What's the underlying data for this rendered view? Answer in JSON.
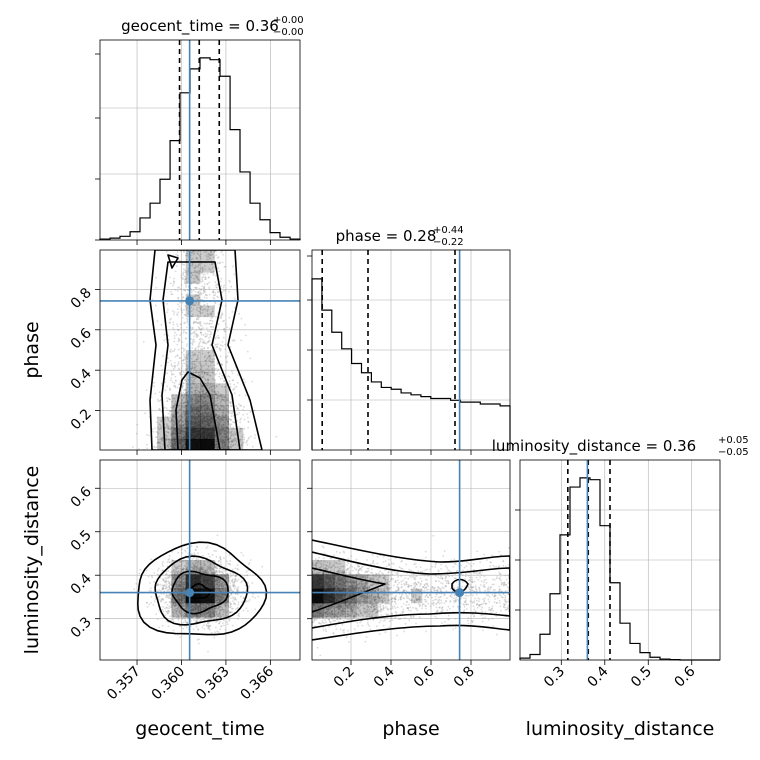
{
  "chart_data": {
    "type": "corner",
    "parameters": [
      "geocent_time",
      "phase",
      "luminosity_distance"
    ],
    "axis_labels": {
      "geocent_time": "geocent_time",
      "phase": "phase",
      "luminosity_distance": "luminosity_distance"
    },
    "ranges": {
      "geocent_time": [
        0.3545,
        0.368
      ],
      "phase": [
        0.005,
        0.995
      ],
      "luminosity_distance": [
        0.205,
        0.665
      ]
    },
    "ticks": {
      "geocent_time": [
        0.357,
        0.36,
        0.363,
        0.366
      ],
      "phase": [
        0.2,
        0.4,
        0.6,
        0.8
      ],
      "luminosity_distance": [
        0.3,
        0.4,
        0.5,
        0.6
      ]
    },
    "tick_labels": {
      "geocent_time": [
        "0.357",
        "0.360",
        "0.363",
        "0.366"
      ],
      "phase": [
        "0.2",
        "0.4",
        "0.6",
        "0.8"
      ],
      "luminosity_distance": [
        "0.3",
        "0.4",
        "0.5",
        "0.6"
      ]
    },
    "titles": {
      "geocent_time": {
        "name": "geocent_time",
        "median": "0.36",
        "upper": "+0.00",
        "lower": "−0.00"
      },
      "phase": {
        "name": "phase",
        "median": "0.28",
        "upper": "+0.44",
        "lower": "−0.22"
      },
      "luminosity_distance": {
        "name": "luminosity_distance",
        "median": "0.36",
        "upper": "+0.05",
        "lower": "−0.05"
      }
    },
    "truths": {
      "geocent_time": 0.36055,
      "phase": 0.743,
      "luminosity_distance": 0.36
    },
    "quantiles": {
      "geocent_time": [
        0.35987,
        0.3612,
        0.36255
      ],
      "phase": [
        0.056,
        0.285,
        0.72
      ],
      "luminosity_distance": [
        0.315,
        0.362,
        0.412
      ]
    },
    "histograms_1d": {
      "geocent_time": {
        "edges": [
          0.3545,
          0.35518,
          0.35585,
          0.35653,
          0.3572,
          0.35788,
          0.35855,
          0.35923,
          0.3599,
          0.36058,
          0.36125,
          0.36193,
          0.3626,
          0.36328,
          0.36395,
          0.36463,
          0.3653,
          0.36598,
          0.36665,
          0.36733,
          0.368
        ],
        "counts": [
          0.005,
          0.01,
          0.02,
          0.045,
          0.12,
          0.2,
          0.33,
          0.54,
          0.8,
          0.93,
          0.99,
          0.98,
          0.89,
          0.6,
          0.37,
          0.2,
          0.11,
          0.04,
          0.015,
          0.005
        ],
        "grid": true
      },
      "phase": {
        "edges": [
          0.005,
          0.0545,
          0.104,
          0.1535,
          0.203,
          0.2525,
          0.302,
          0.3515,
          0.401,
          0.4505,
          0.5,
          0.5495,
          0.599,
          0.6485,
          0.698,
          0.7475,
          0.797,
          0.8465,
          0.896,
          0.9455,
          0.995
        ],
        "counts": [
          0.93,
          0.76,
          0.64,
          0.55,
          0.47,
          0.42,
          0.37,
          0.34,
          0.33,
          0.31,
          0.3,
          0.29,
          0.28,
          0.28,
          0.27,
          0.26,
          0.26,
          0.25,
          0.25,
          0.24
        ],
        "grid": true
      },
      "luminosity_distance": {
        "edges": [
          0.205,
          0.228,
          0.251,
          0.274,
          0.297,
          0.32,
          0.343,
          0.366,
          0.389,
          0.412,
          0.435,
          0.458,
          0.481,
          0.504,
          0.527,
          0.55,
          0.573,
          0.596,
          0.619,
          0.642,
          0.665
        ],
        "counts": [
          0.01,
          0.03,
          0.14,
          0.36,
          0.68,
          0.94,
          0.99,
          0.98,
          0.73,
          0.42,
          0.2,
          0.09,
          0.04,
          0.015,
          0.005,
          0.002,
          0,
          0,
          0,
          0
        ],
        "grid": true
      }
    },
    "joint_2d": [
      {
        "x": "geocent_time",
        "y": "phase",
        "center_x": 0.3612,
        "sigma_x": 0.001,
        "notes": "phase mass concentrated near 0, with a long tail to 1"
      },
      {
        "x": "geocent_time",
        "y": "luminosity_distance",
        "center_x": 0.3612,
        "sigma_x": 0.0013,
        "center_y": 0.362,
        "sigma_y": 0.035
      },
      {
        "x": "phase",
        "y": "luminosity_distance",
        "center_y": 0.36,
        "sigma_y": 0.035,
        "notes": "density highest at low phase, flat band across phase"
      }
    ],
    "colors": {
      "truth": "#4682b4",
      "hist": "#000000",
      "quantile": "#000000",
      "contour": "#000000",
      "points": "#999999",
      "density": "#000000"
    },
    "grid": true
  }
}
